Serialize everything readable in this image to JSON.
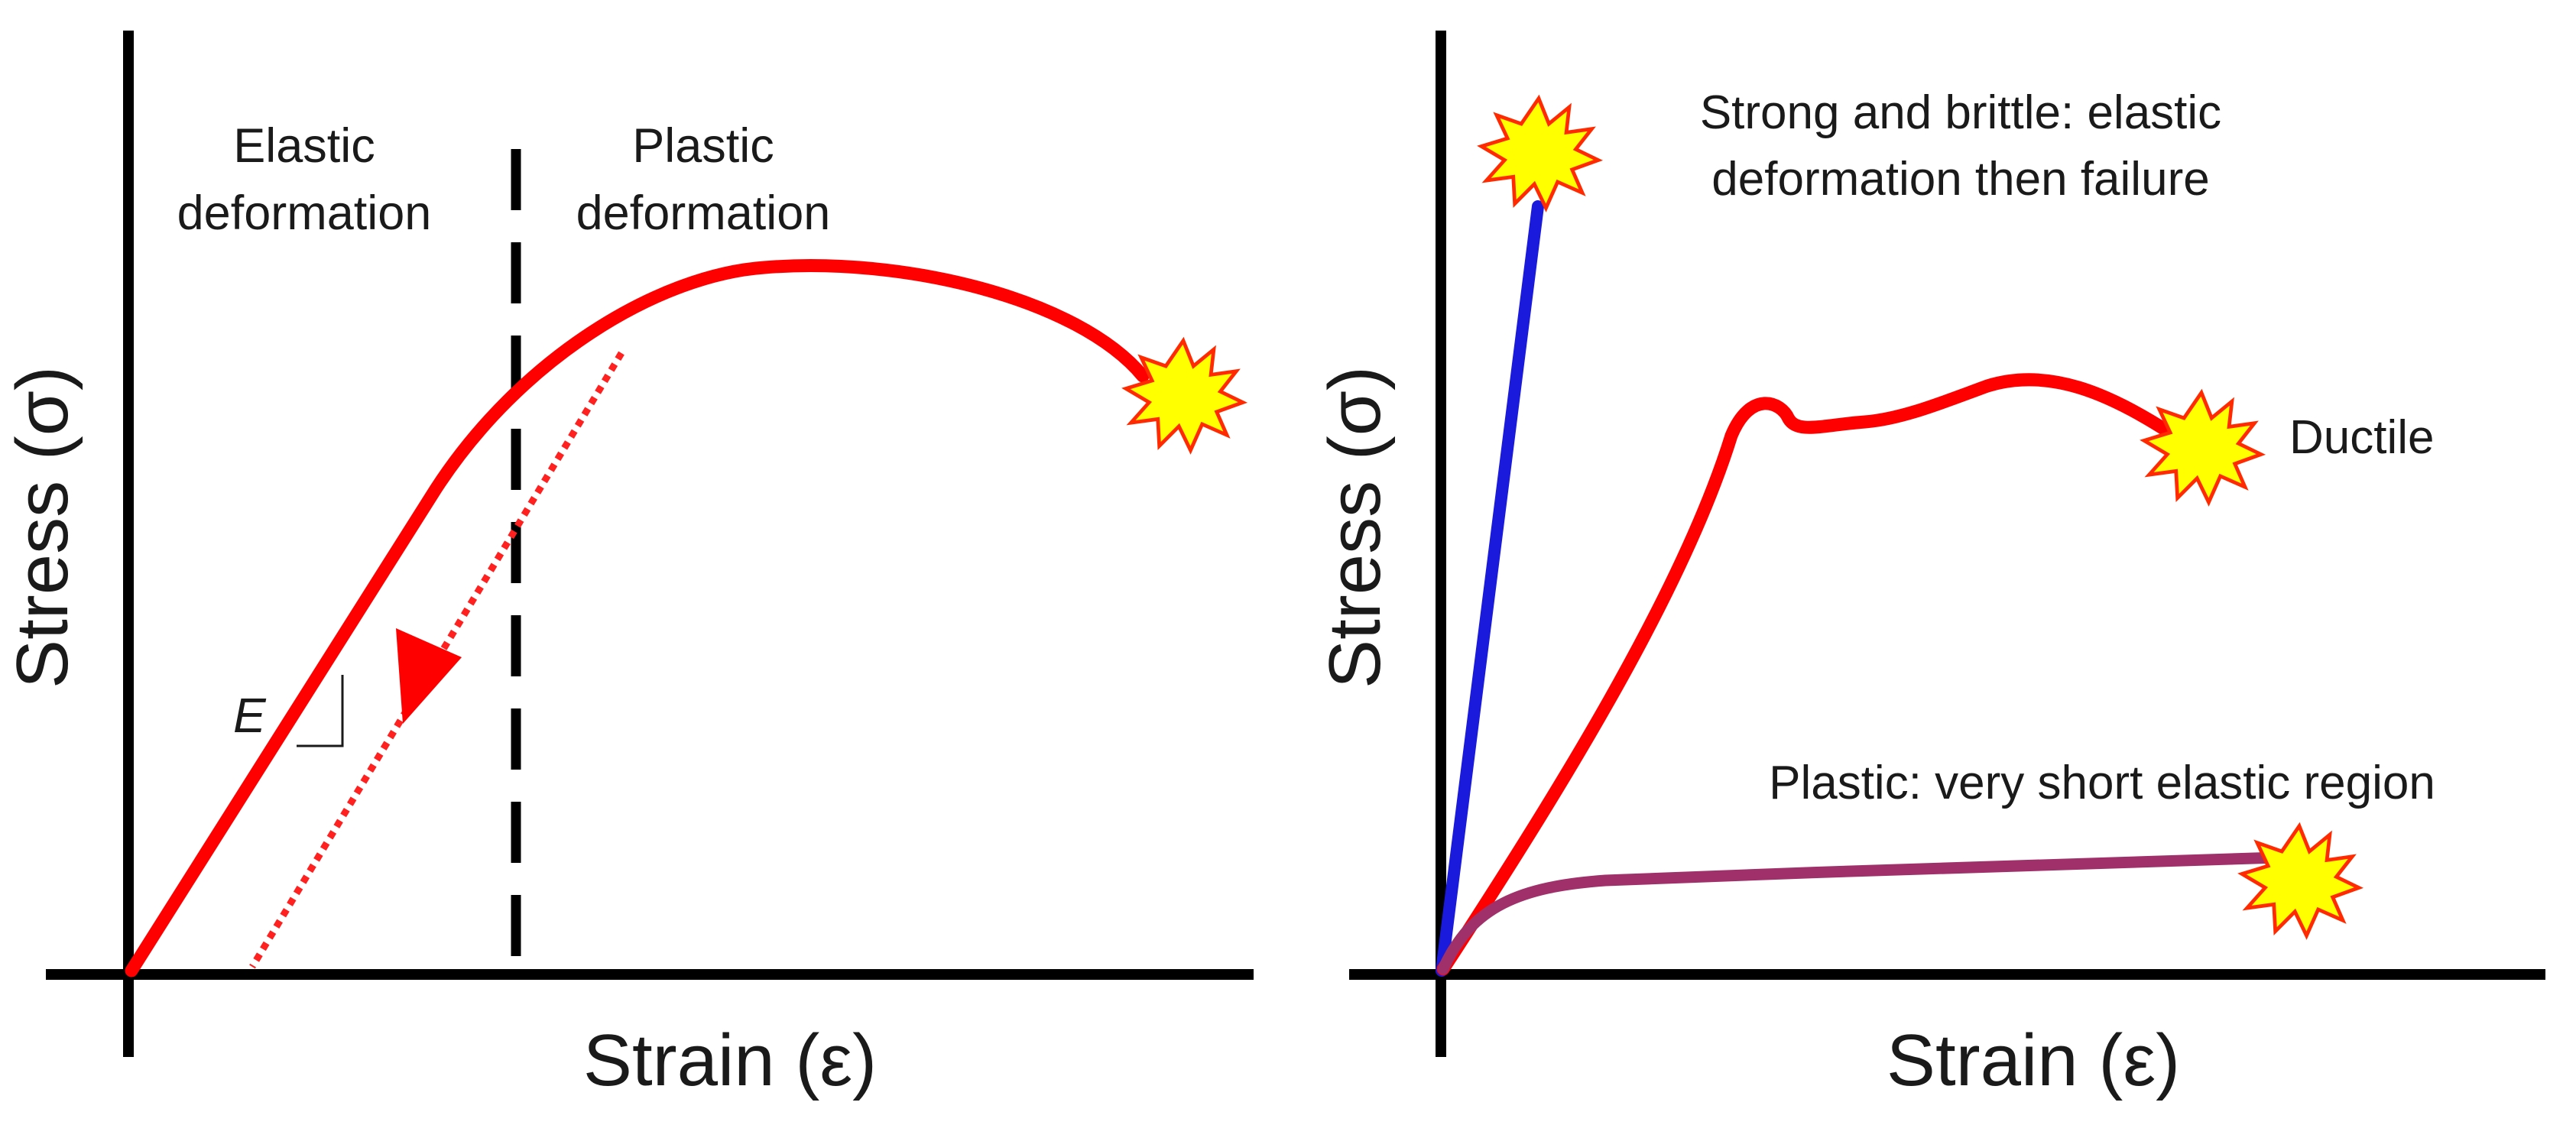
{
  "left_panel": {
    "y_axis_label": "Stress (σ)",
    "x_axis_label": "Strain (ε)",
    "elastic_region": {
      "line1": "Elastic",
      "line2": "deformation"
    },
    "plastic_region": {
      "line1": "Plastic",
      "line2": "deformation"
    },
    "modulus_label": "E"
  },
  "right_panel": {
    "y_axis_label": "Stress (σ)",
    "x_axis_label": "Strain (ε)",
    "brittle_label": {
      "line1": "Strong and brittle: elastic",
      "line2": "deformation then failure"
    },
    "ductile_label": "Ductile",
    "plastic_label": "Plastic: very short elastic region"
  },
  "colors": {
    "axis": "#000000",
    "ductile_curve": "#ff0000",
    "brittle_curve": "#1a1adc",
    "plastic_curve": "#a0306a",
    "failure_star_fill": "#ffff00",
    "failure_star_stroke": "#ff2a00"
  },
  "icons": {
    "failure_marker": "failure-star-icon",
    "unloading_arrow": "arrow-down-left-icon"
  }
}
